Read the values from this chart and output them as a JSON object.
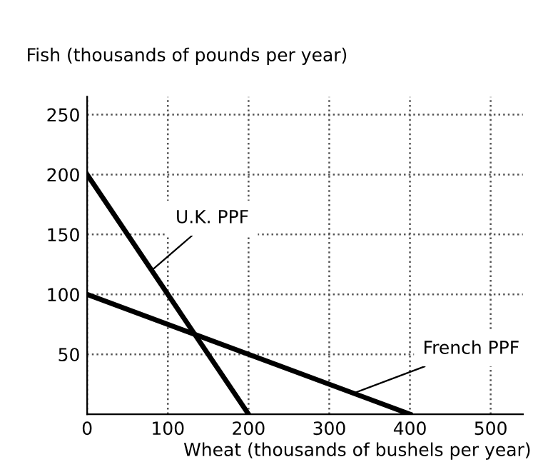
{
  "chart_data": {
    "type": "line",
    "xlabel": "Wheat (thousands of bushels per year)",
    "ylabel": "Fish (thousands of pounds per year)",
    "series": [
      {
        "x": [
          0,
          200
        ],
        "values": [
          200,
          0
        ],
        "color": "#000000"
      },
      {
        "x": [
          0,
          400
        ],
        "values": [
          100,
          0
        ],
        "color": "#000000"
      }
    ],
    "xlim": [
      0,
      540
    ],
    "ylim": [
      0,
      265
    ],
    "xticks": [
      0,
      100,
      200,
      300,
      400,
      500
    ],
    "yticks": [
      50,
      100,
      150,
      200,
      250
    ],
    "grid": true,
    "line_style": "solid",
    "marker": "none",
    "annotations": [
      {
        "text": "U.K. PPF",
        "x": 80,
        "y": 120
      },
      {
        "text": "French PPF",
        "x": 330,
        "y": 17.5
      }
    ]
  }
}
